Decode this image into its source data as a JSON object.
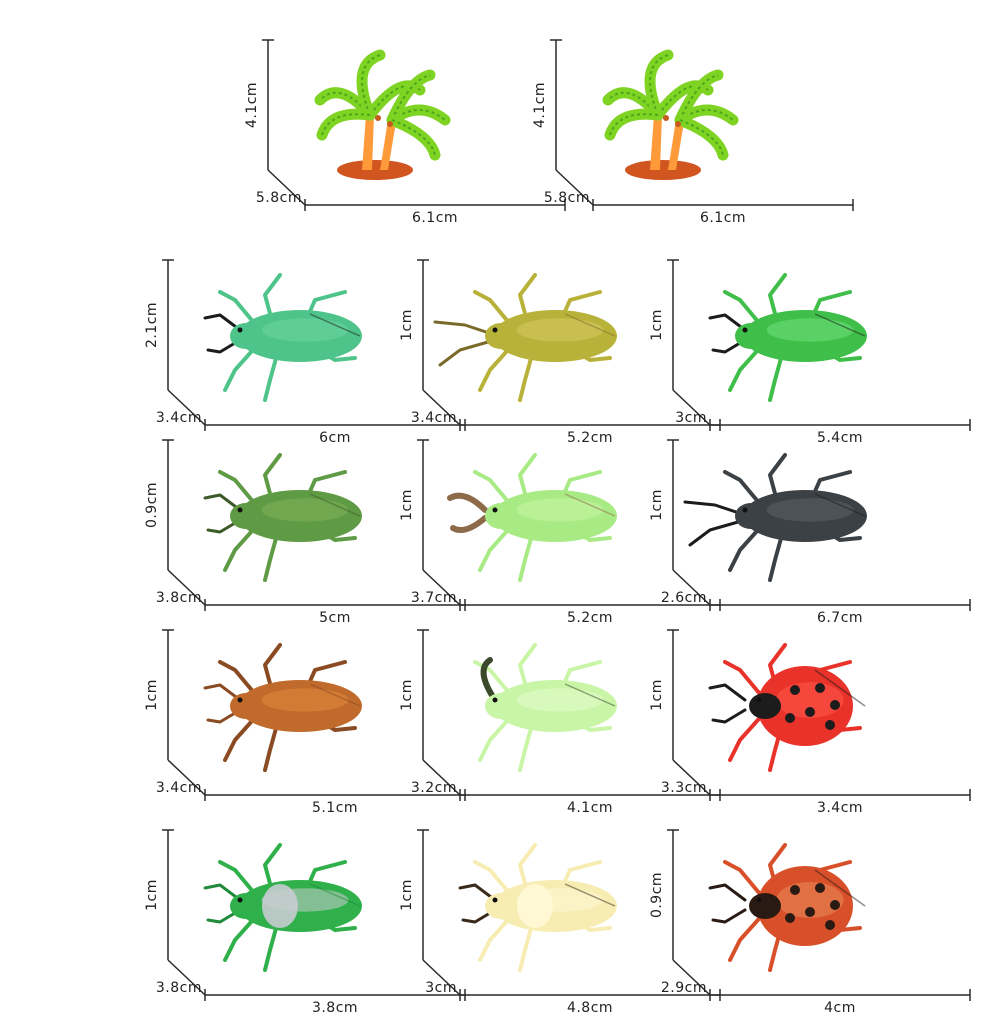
{
  "items": [
    {
      "name": "palm-tree",
      "kind": "palm",
      "height": "4.1cm",
      "depth": "5.8cm",
      "width": "6.1cm",
      "colors": {
        "body": "#ff9a3a",
        "accent": "#7fd323",
        "dark": "#d0551e"
      }
    },
    {
      "name": "palm-tree",
      "kind": "palm",
      "height": "4.1cm",
      "depth": "5.8cm",
      "width": "6.1cm",
      "colors": {
        "body": "#ff9a3a",
        "accent": "#7fd323",
        "dark": "#d0551e"
      }
    },
    {
      "name": "green-stag-beetle",
      "kind": "beetle",
      "height": "2.1cm",
      "depth": "3.4cm",
      "width": "6cm",
      "colors": {
        "body": "#4fc48a",
        "accent": "#6ed6a0",
        "dark": "#1c1c1c"
      }
    },
    {
      "name": "yellow-longhorn-beetle",
      "kind": "longhorn",
      "height": "1cm",
      "depth": "3.4cm",
      "width": "5.2cm",
      "colors": {
        "body": "#b9b23a",
        "accent": "#d7c862",
        "dark": "#7a6a2a"
      }
    },
    {
      "name": "green-beetle",
      "kind": "beetle",
      "height": "1cm",
      "depth": "3cm",
      "width": "5.4cm",
      "colors": {
        "body": "#3fbf4a",
        "accent": "#6fe07a",
        "dark": "#1c1c1c"
      }
    },
    {
      "name": "olive-beetle",
      "kind": "beetle",
      "height": "0.9cm",
      "depth": "3.8cm",
      "width": "5cm",
      "colors": {
        "body": "#5f9a44",
        "accent": "#7fb25a",
        "dark": "#3c5a2a"
      }
    },
    {
      "name": "pale-green-stag-beetle",
      "kind": "stag",
      "height": "1cm",
      "depth": "3.7cm",
      "width": "5.2cm",
      "colors": {
        "body": "#a8ea84",
        "accent": "#c9f5a6",
        "dark": "#8c6a4a"
      }
    },
    {
      "name": "black-longhorn-beetle",
      "kind": "longhorn",
      "height": "1cm",
      "depth": "2.6cm",
      "width": "6.7cm",
      "colors": {
        "body": "#3c4146",
        "accent": "#5a6066",
        "dark": "#1c1c1c"
      }
    },
    {
      "name": "brown-cockroach",
      "kind": "roach",
      "height": "1cm",
      "depth": "3.4cm",
      "width": "5.1cm",
      "colors": {
        "body": "#c06a2c",
        "accent": "#e0893e",
        "dark": "#8a4a22"
      }
    },
    {
      "name": "pale-green-rhino-beetle",
      "kind": "rhino",
      "height": "1cm",
      "depth": "3.2cm",
      "width": "4.1cm",
      "colors": {
        "body": "#c9f5a6",
        "accent": "#e2fbcc",
        "dark": "#3a4a2a"
      }
    },
    {
      "name": "ladybug",
      "kind": "ladybug",
      "height": "1cm",
      "depth": "3.3cm",
      "width": "3.4cm",
      "colors": {
        "body": "#e8322a",
        "accent": "#ff5a4a",
        "dark": "#1c1c1c"
      }
    },
    {
      "name": "green-silver-beetle",
      "kind": "scarab",
      "height": "1cm",
      "depth": "3.8cm",
      "width": "3.8cm",
      "colors": {
        "body": "#2fb04a",
        "accent": "#c8ccd0",
        "dark": "#1f8a3a"
      }
    },
    {
      "name": "cream-beetle",
      "kind": "scarab",
      "height": "1cm",
      "depth": "3cm",
      "width": "4.8cm",
      "colors": {
        "body": "#f7edb2",
        "accent": "#fff8d6",
        "dark": "#3a2a1a"
      }
    },
    {
      "name": "red-brown-beetle",
      "kind": "ladybug",
      "height": "0.9cm",
      "depth": "2.9cm",
      "width": "4cm",
      "colors": {
        "body": "#d8502a",
        "accent": "#e98a5a",
        "dark": "#2a1a14"
      }
    }
  ]
}
